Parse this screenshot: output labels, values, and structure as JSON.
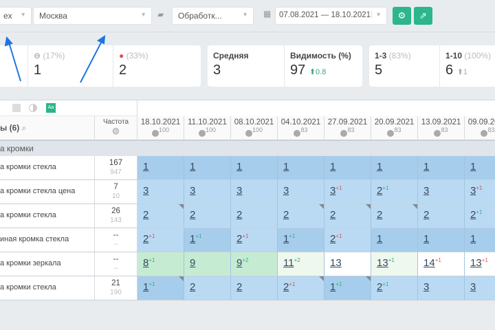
{
  "filters": {
    "engine": "ex",
    "region": "Москва",
    "group": "Обработк...",
    "date_range": "07.08.2021 — 18.10.2021"
  },
  "buttons": {
    "settings": "settings-icon",
    "export": "export-icon"
  },
  "stats": {
    "same": {
      "pct": "(17%)",
      "value": "1"
    },
    "down": {
      "pct": "(33%)",
      "value": "2"
    },
    "average": {
      "label": "Средняя",
      "value": "3"
    },
    "visibility": {
      "label": "Видимость (%)",
      "value": "97",
      "delta": "0.8"
    },
    "top3": {
      "label": "1-3",
      "pct": "(83%)",
      "value": "5"
    },
    "top10": {
      "label": "1-10",
      "pct": "(100%)",
      "value": "6",
      "delta": "1"
    }
  },
  "table": {
    "keywords_header": "ы (6)",
    "freq_header": "Частота",
    "group": "а кромки",
    "dates": [
      {
        "d": "18.10.2021",
        "p": "100"
      },
      {
        "d": "11.10.2021",
        "p": "100"
      },
      {
        "d": "08.10.2021",
        "p": "100"
      },
      {
        "d": "04.10.2021",
        "p": "83"
      },
      {
        "d": "27.09.2021",
        "p": "83"
      },
      {
        "d": "20.09.2021",
        "p": "83"
      },
      {
        "d": "13.09.2021",
        "p": "83"
      },
      {
        "d": "09.09.2021",
        "p": "83"
      }
    ],
    "rows": [
      {
        "kw": "а кромки стекла",
        "f1": "167",
        "f2": "947",
        "pos": [
          1,
          1,
          1,
          1,
          1,
          1,
          1,
          1
        ],
        "chg": [
          0,
          0,
          0,
          0,
          0,
          0,
          0,
          0
        ],
        "notes": []
      },
      {
        "kw": "а кромки стекла цена",
        "f1": "7",
        "f2": "10",
        "pos": [
          3,
          3,
          3,
          3,
          3,
          2,
          3,
          3
        ],
        "chg": [
          0,
          0,
          0,
          0,
          -1,
          1,
          0,
          -1
        ],
        "notes": []
      },
      {
        "kw": "а кромки стекла",
        "f1": "26",
        "f2": "143",
        "pos": [
          2,
          2,
          2,
          2,
          2,
          2,
          2,
          2
        ],
        "chg": [
          0,
          0,
          0,
          0,
          0,
          0,
          0,
          1
        ],
        "notes": [
          0,
          3,
          4,
          5
        ]
      },
      {
        "kw": "иная кромка стекла",
        "f1": "--",
        "f2": "--",
        "pos": [
          2,
          1,
          2,
          1,
          2,
          1,
          1,
          1
        ],
        "chg": [
          -1,
          1,
          -1,
          1,
          -1,
          0,
          0,
          0
        ],
        "notes": []
      },
      {
        "kw": "а кромки зеркала",
        "f1": "--",
        "f2": "--",
        "pos": [
          8,
          9,
          9,
          11,
          13,
          13,
          14,
          13
        ],
        "chg": [
          1,
          0,
          2,
          2,
          0,
          1,
          -1,
          -1
        ],
        "notes": []
      },
      {
        "kw": "а кромки стекла",
        "f1": "21",
        "f2": "190",
        "pos": [
          1,
          2,
          2,
          2,
          1,
          2,
          3,
          3
        ],
        "chg": [
          1,
          0,
          0,
          -1,
          1,
          1,
          0,
          0
        ],
        "notes": [
          0,
          3,
          4
        ]
      }
    ]
  },
  "colors": {
    "accent": "#2db58b",
    "top1": "#a7cdec",
    "top3": "#badaf3",
    "top10": "#c5ecd2",
    "improved": "#eff8ee",
    "other": "#ffffff"
  }
}
